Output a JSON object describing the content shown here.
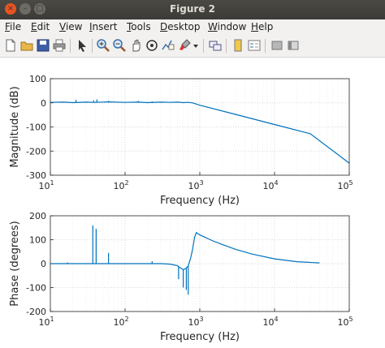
{
  "window": {
    "title": "Figure 2",
    "close_glyph": "×",
    "minimize_glyph": "–",
    "maximize_glyph": "□"
  },
  "menu": {
    "items": [
      {
        "label": "File",
        "underline": "F",
        "rest": "ile"
      },
      {
        "label": "Edit",
        "underline": "E",
        "rest": "dit"
      },
      {
        "label": "View",
        "underline": "V",
        "rest": "iew"
      },
      {
        "label": "Insert",
        "underline": "I",
        "rest": "nsert"
      },
      {
        "label": "Tools",
        "underline": "T",
        "rest": "ools"
      },
      {
        "label": "Desktop",
        "underline": "D",
        "rest": "esktop"
      },
      {
        "label": "Window",
        "underline": "W",
        "rest": "indow"
      },
      {
        "label": "Help",
        "underline": "H",
        "rest": "elp"
      }
    ]
  },
  "toolbar": {
    "icons": [
      "new-figure-icon",
      "open-file-icon",
      "save-icon",
      "print-icon",
      "pointer-icon",
      "zoom-in-icon",
      "zoom-out-icon",
      "pan-icon",
      "rotate-3d-icon",
      "data-cursor-icon",
      "brush-icon",
      "dropdown-icon",
      "link-plot-icon",
      "insert-colorbar-icon",
      "insert-legend-icon",
      "hide-plot-tools-icon"
    ]
  },
  "colors": {
    "line": "#0072bd",
    "grid": "#d9d9d9",
    "axes": "#262626"
  },
  "chart_data": [
    {
      "type": "line",
      "ylabel": "Magnitude (dB)",
      "xlabel": "Frequency (Hz)",
      "xscale": "log",
      "xlim": [
        10,
        100000
      ],
      "ylim": [
        -300,
        100
      ],
      "xtick_base": "10",
      "xtick_exponents": [
        "1",
        "2",
        "3",
        "4",
        "5"
      ],
      "yticks": [
        "100",
        "0",
        "-100",
        "-200",
        "-300"
      ],
      "grid": true,
      "series": [
        {
          "x": [
            10,
            15,
            20,
            30,
            40,
            60,
            100,
            150,
            200,
            300,
            400,
            500,
            600,
            700,
            800,
            1000,
            3000,
            10000,
            30000,
            100000
          ],
          "y": [
            2,
            3,
            1,
            3,
            2,
            4,
            2,
            3,
            1,
            3,
            2,
            3,
            1,
            2,
            0,
            -10,
            -48,
            -90,
            -128,
            -250
          ],
          "spikes": [
            [
              22,
              12
            ],
            [
              38,
              10
            ],
            [
              42,
              14
            ],
            [
              60,
              8
            ],
            [
              150,
              8
            ],
            [
              230,
              6
            ]
          ]
        }
      ]
    },
    {
      "type": "line",
      "ylabel": "Phase (degrees)",
      "xlabel": "Frequency (Hz)",
      "xscale": "log",
      "xlim": [
        10,
        100000
      ],
      "ylim": [
        -200,
        200
      ],
      "xtick_base": "10",
      "xtick_exponents": [
        "1",
        "2",
        "3",
        "4",
        "5"
      ],
      "yticks": [
        "200",
        "100",
        "0",
        "-100",
        "-200"
      ],
      "grid": true,
      "series": [
        {
          "x": [
            10,
            40,
            100,
            200,
            300,
            400,
            500,
            550,
            600,
            650,
            700,
            750,
            800,
            850,
            900,
            1000,
            1500,
            2000,
            3000,
            5000,
            10000,
            20000,
            40000
          ],
          "y": [
            0,
            0,
            0,
            0,
            0,
            -2,
            -8,
            -18,
            -25,
            -20,
            -10,
            20,
            60,
            110,
            130,
            120,
            95,
            80,
            60,
            40,
            20,
            8,
            3
          ],
          "spikes": [
            [
              17,
              5
            ],
            [
              37,
              160
            ],
            [
              41,
              145
            ],
            [
              60,
              45
            ],
            [
              230,
              10
            ],
            [
              520,
              -65
            ],
            [
              600,
              -100
            ],
            [
              660,
              -110
            ],
            [
              700,
              -130
            ]
          ]
        }
      ]
    }
  ]
}
